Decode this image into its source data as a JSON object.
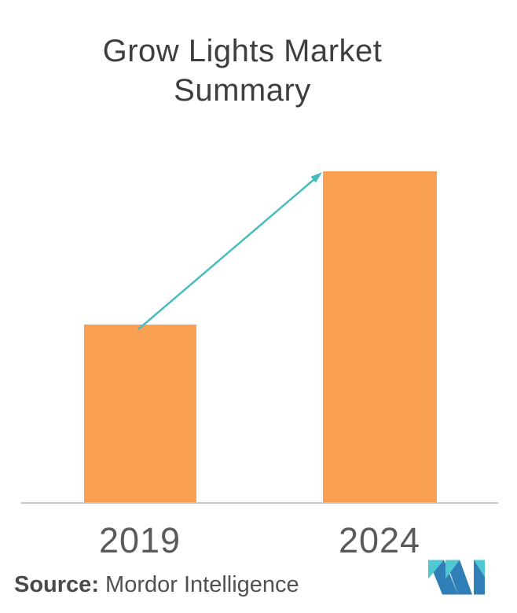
{
  "title": {
    "line1": "Grow Lights Market",
    "line2": "Summary"
  },
  "chart_data": {
    "type": "bar",
    "title": "Grow Lights Market Summary",
    "categories": [
      "2019",
      "2024"
    ],
    "values": [
      100,
      186
    ],
    "value_note": "No y-axis or data labels shown; values are relative bar heights (2024 bar is about 1.86 times the 2019 bar)",
    "xlabel": "",
    "ylabel": "",
    "ylim": [
      0,
      200
    ],
    "grid": false,
    "legend": false,
    "annotations": [
      {
        "type": "arrow",
        "description": "growth arrow from top of 2019 bar to top of 2024 bar",
        "color": "#48BCBE"
      }
    ]
  },
  "source": {
    "label": "Source:",
    "text": "Mordor Intelligence"
  },
  "icons": {
    "logo": "mordor-intelligence-logo"
  },
  "colors": {
    "bar_orange": "#F9A052",
    "arrow_teal": "#48BCBE",
    "axis_gray": "#C9C9C9",
    "title_gray": "#3E3E3E",
    "tick_label_gray": "#5A5A5A",
    "source_gray": "#515151",
    "logo_teal": "#4FC8D1",
    "logo_blue": "#2F7EB6"
  }
}
